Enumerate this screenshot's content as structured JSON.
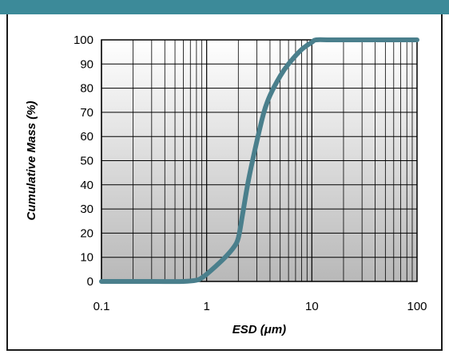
{
  "chart_data": {
    "type": "line",
    "xlabel": "ESD (μm)",
    "ylabel": "Cumulative Mass (%)",
    "xscale": "log",
    "xlim": [
      0.1,
      100
    ],
    "ylim": [
      0,
      100
    ],
    "x_ticks": [
      "0.1",
      "1",
      "10",
      "100"
    ],
    "y_ticks": [
      "0",
      "10",
      "20",
      "30",
      "40",
      "50",
      "60",
      "70",
      "80",
      "90",
      "100"
    ],
    "grid": true,
    "legend": "none",
    "series": [
      {
        "color": "#4a7f8c",
        "x": [
          0.1,
          0.3,
          0.6,
          0.8,
          0.9,
          1.0,
          1.2,
          1.5,
          1.8,
          2.0,
          2.2,
          2.5,
          3.0,
          3.5,
          4.0,
          5.0,
          6.0,
          8.0,
          10.0,
          11.0,
          15.0,
          30.0,
          100.0
        ],
        "y": [
          0,
          0,
          0,
          0.5,
          1.5,
          3,
          6,
          10,
          14,
          18,
          28,
          42,
          58,
          70,
          77,
          85,
          90,
          96,
          99,
          100,
          100,
          100,
          100
        ]
      }
    ],
    "colors": {
      "line": "#4a7f8c",
      "grid": "#000000",
      "plot_bg_top": "#ffffff",
      "plot_bg_bottom": "#b8b8b8",
      "header_bar": "#3c8a99"
    }
  }
}
